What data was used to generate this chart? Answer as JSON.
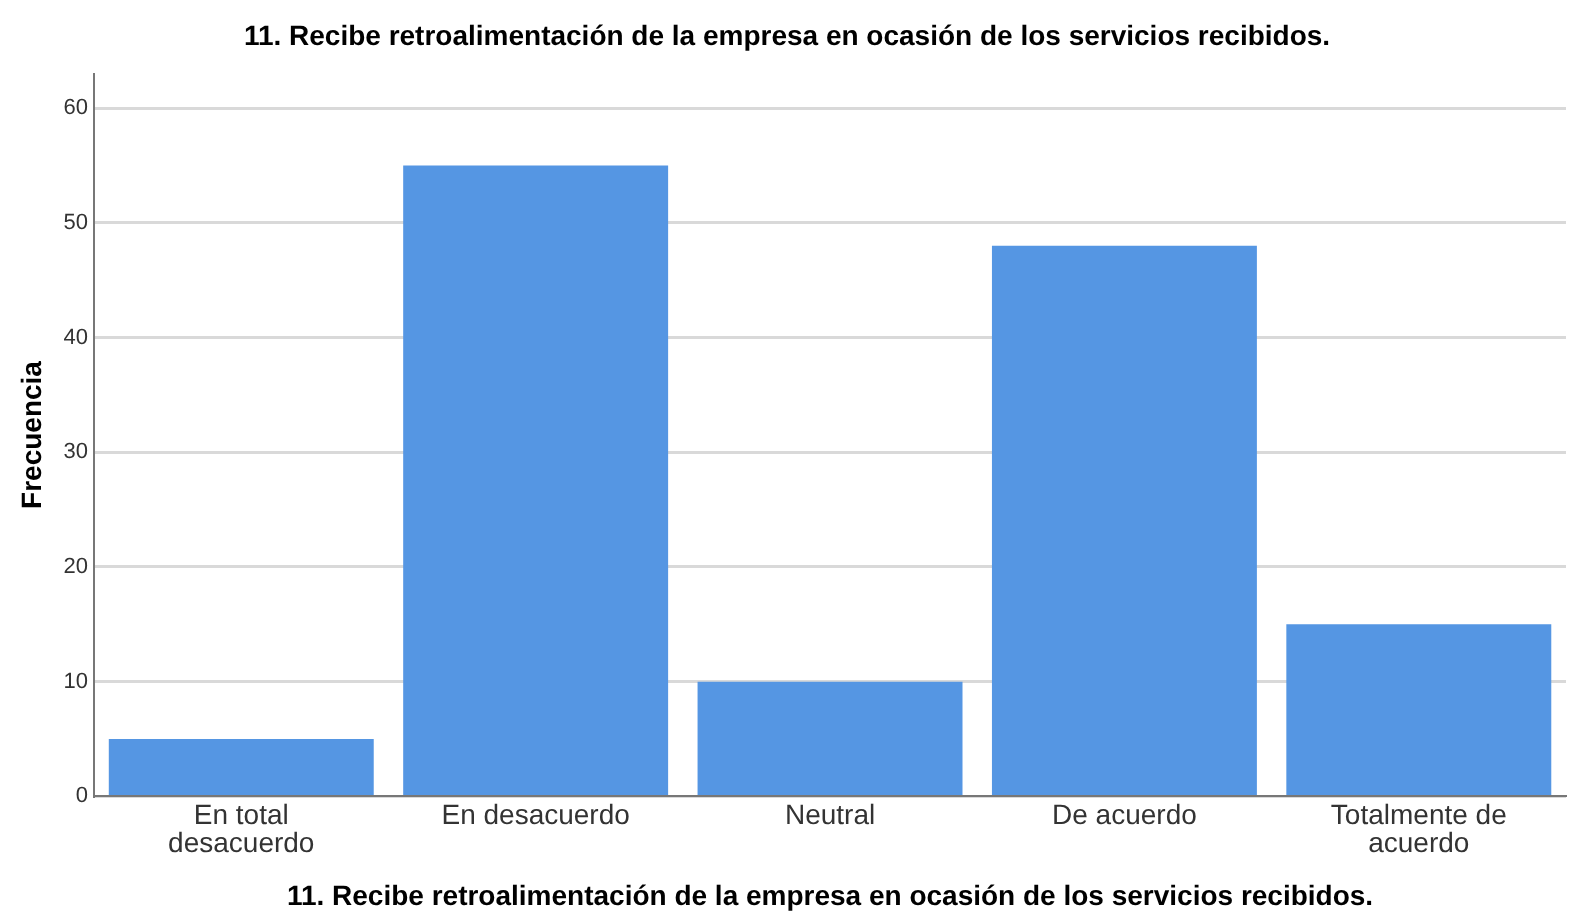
{
  "chart_data": {
    "type": "bar",
    "title": "11. Recibe retroalimentación de la empresa en ocasión de los servicios recibidos.",
    "xlabel": "11. Recibe retroalimentación de la empresa en ocasión de los servicios recibidos.",
    "ylabel": "Frecuencia",
    "categories": [
      "En total desacuerdo",
      "En desacuerdo",
      "Neutral",
      "De acuerdo",
      "Totalmente de acuerdo"
    ],
    "values": [
      5,
      55,
      10,
      48,
      15
    ],
    "color": "#5596e3",
    "ylim": [
      0,
      63
    ],
    "yticks": [
      0,
      10,
      20,
      30,
      40,
      50,
      60
    ],
    "grid": "y",
    "legend": false
  }
}
